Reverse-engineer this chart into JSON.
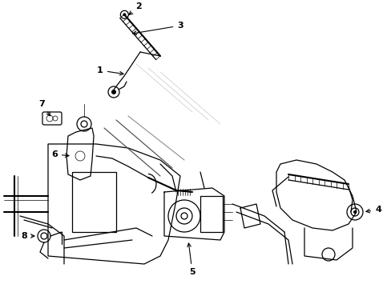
{
  "bg_color": "#ffffff",
  "line_color": "#000000",
  "fig_width": 4.89,
  "fig_height": 3.6,
  "dpi": 100,
  "linewidth": 0.9,
  "thin_lw": 0.5,
  "thick_lw": 1.5
}
